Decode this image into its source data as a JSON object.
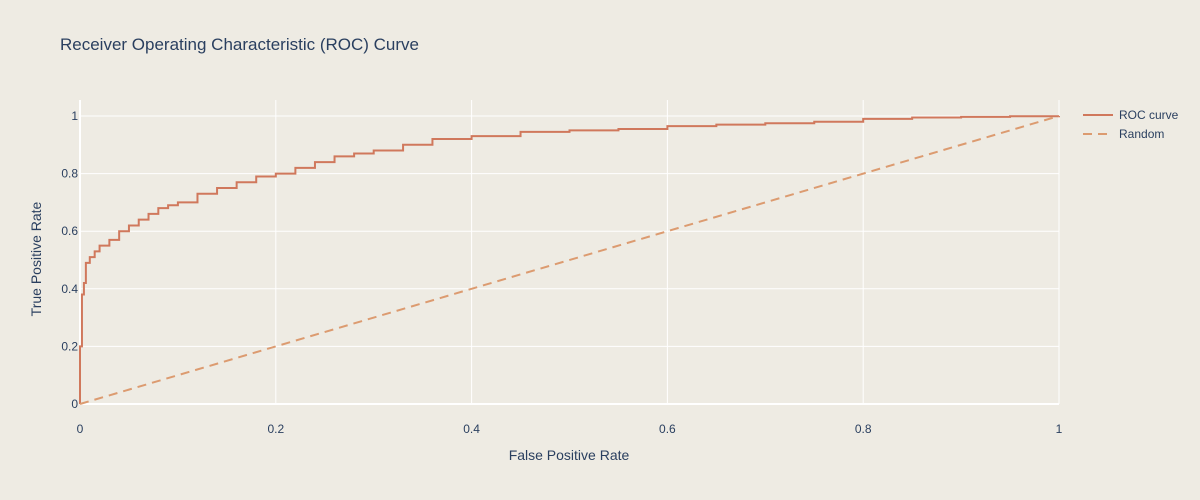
{
  "chart_data": {
    "type": "line",
    "title": "Receiver Operating Characteristic (ROC) Curve",
    "xlabel": "False Positive Rate",
    "ylabel": "True Positive Rate",
    "xlim": [
      0,
      1
    ],
    "ylim": [
      0,
      1
    ],
    "x_ticks": [
      "0",
      "0.2",
      "0.4",
      "0.6",
      "0.8",
      "1"
    ],
    "y_ticks": [
      "0",
      "0.2",
      "0.4",
      "0.6",
      "0.8",
      "1"
    ],
    "grid": true,
    "legend_position": "top-right",
    "colors": {
      "background": "#eeebe3",
      "grid": "#ffffff",
      "roc": "#d0785c",
      "random": "#dc9b70",
      "text": "#2a3f5f"
    },
    "series": [
      {
        "name": "ROC curve",
        "style": "solid",
        "x": [
          0,
          0,
          0.002,
          0.004,
          0.006,
          0.01,
          0.015,
          0.02,
          0.03,
          0.04,
          0.05,
          0.06,
          0.07,
          0.08,
          0.09,
          0.1,
          0.12,
          0.14,
          0.16,
          0.18,
          0.2,
          0.22,
          0.24,
          0.26,
          0.28,
          0.3,
          0.33,
          0.36,
          0.4,
          0.45,
          0.5,
          0.55,
          0.6,
          0.65,
          0.7,
          0.75,
          0.8,
          0.85,
          0.9,
          0.95,
          1.0
        ],
        "y": [
          0,
          0.2,
          0.38,
          0.42,
          0.49,
          0.51,
          0.53,
          0.55,
          0.57,
          0.6,
          0.62,
          0.64,
          0.66,
          0.68,
          0.69,
          0.7,
          0.73,
          0.75,
          0.77,
          0.79,
          0.8,
          0.82,
          0.84,
          0.86,
          0.87,
          0.88,
          0.9,
          0.92,
          0.93,
          0.945,
          0.95,
          0.955,
          0.965,
          0.97,
          0.975,
          0.98,
          0.99,
          0.995,
          0.997,
          0.999,
          1.0
        ]
      },
      {
        "name": "Random",
        "style": "dash",
        "x": [
          0,
          1
        ],
        "y": [
          0,
          1
        ]
      }
    ]
  }
}
